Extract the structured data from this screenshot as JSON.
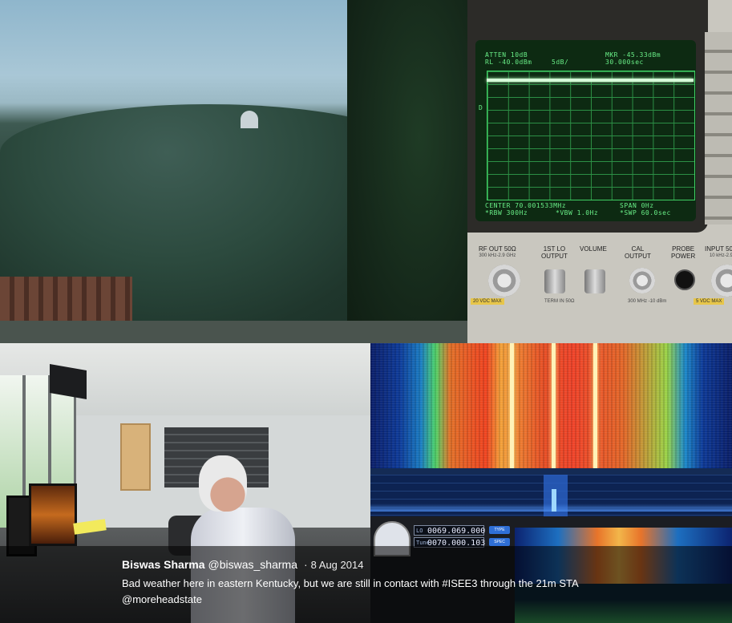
{
  "tweet": {
    "author_name": "Biswas Sharma",
    "author_handle": "@biswas_sharma",
    "separator": "·",
    "date": "8 Aug 2014",
    "text_before_hashtag": "Bad weather here in eastern Kentucky, but we are still in contact with ",
    "hashtag": "#ISEE3",
    "text_after_hashtag": " through the 21m STA ",
    "mention": "@moreheadstate"
  },
  "spectrum_analyzer": {
    "atten": "ATTEN 10dB",
    "rl": "RL -40.0dBm",
    "scale": "5dB/",
    "marker": "MKR -45.33dBm",
    "marker_time": "30.000sec",
    "display_marker": "D",
    "center": "CENTER 70.001533MHz",
    "span": "SPAN 0Hz",
    "rbw": "*RBW 300Hz",
    "vbw": "*VBW 1.0Hz",
    "sweep": "*SWP 60.0sec",
    "panel_labels": {
      "rf_out": "RF OUT 50Ω",
      "rf_out_sub": "300 kHz-2.9 GHz",
      "first_lo": "1ST LO",
      "first_lo_2": "OUTPUT",
      "first_lo_sub": "TERM IN 50Ω",
      "volume": "VOLUME",
      "cal": "CAL",
      "cal_2": "OUTPUT",
      "cal_sub": "300 MHz -10 dBm",
      "probe": "PROBE",
      "probe_2": "POWER",
      "input": "INPUT 50Ω",
      "input_sub": "10 kHz-2.9",
      "warn_left": "20 VDC MAX",
      "warn_right": "5 VDC MAX"
    }
  },
  "sdr": {
    "lo_label": "LO",
    "lo_value": "0069.069.000",
    "tune_label": "Tune",
    "tune_value": "0070.000.103",
    "btn1": "TYPE",
    "btn2": "SPEC"
  },
  "colors": {
    "overlay_bg": "rgba(0,0,0,0.55)",
    "text": "#ffffff",
    "screen_green": "#69ee87"
  }
}
